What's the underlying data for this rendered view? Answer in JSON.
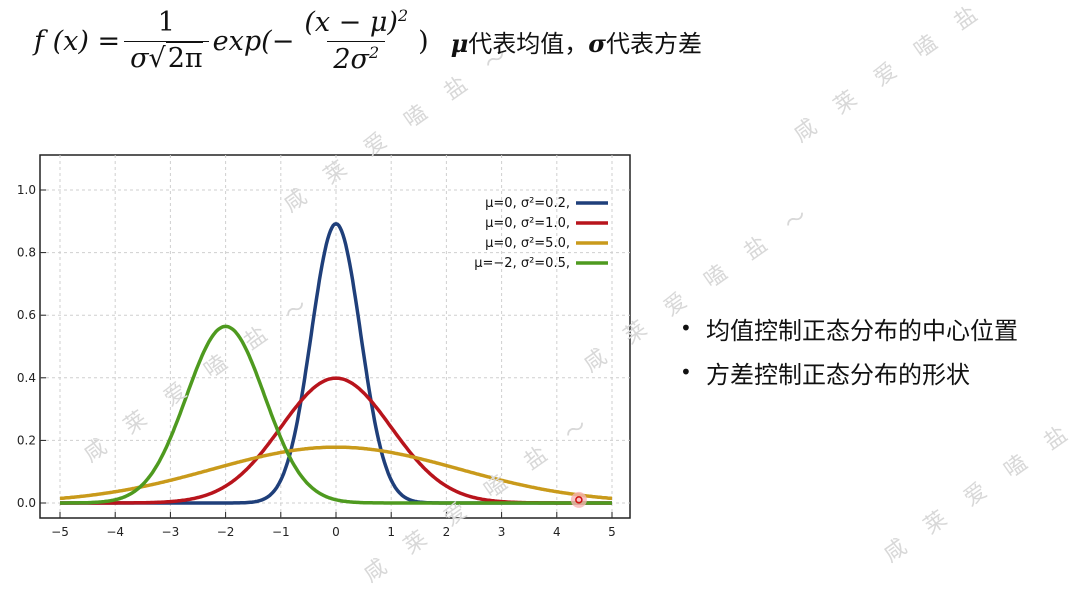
{
  "formula": {
    "fx": "f (x) =",
    "num": "1",
    "den_sigma": "σ",
    "den_sqrt": "2π",
    "exp_text": "exp(−",
    "inner_num": "(x − μ)",
    "inner_num_sup": "2",
    "inner_den": "2σ",
    "inner_den_sup": "2",
    "close": ")",
    "note_mu": "μ",
    "note_mu_text": "代表均值，",
    "note_sigma": "σ",
    "note_sigma_text": "代表方差"
  },
  "chart_data": {
    "type": "line",
    "xlim": [
      -5,
      5
    ],
    "ylim": [
      0,
      1.0
    ],
    "x_ticks": [
      "−5",
      "−4",
      "−3",
      "−2",
      "−1",
      "0",
      "1",
      "2",
      "3",
      "4",
      "5"
    ],
    "y_ticks": [
      "0.0",
      "0.2",
      "0.4",
      "0.6",
      "0.8",
      "1.0"
    ],
    "grid": true,
    "legend_position": "top-right",
    "series": [
      {
        "name": "μ=0,   σ²=0.2,",
        "mu": 0,
        "var": 0.2,
        "color": "#1f3f7a"
      },
      {
        "name": "μ=0,   σ²=1.0,",
        "mu": 0,
        "var": 1.0,
        "color": "#b8141c"
      },
      {
        "name": "μ=0,   σ²=5.0,",
        "mu": 0,
        "var": 5.0,
        "color": "#c99a1b"
      },
      {
        "name": "μ=−2, σ²=0.5,",
        "mu": -2,
        "var": 0.5,
        "color": "#4e9a1f"
      }
    ]
  },
  "bullets": [
    {
      "dot": "•",
      "text": "均值控制正态分布的中心位置"
    },
    {
      "dot": "•",
      "text": "方差控制正态分布的形状"
    }
  ],
  "watermark": "咸 莱 爱 嗑 盐 ～"
}
